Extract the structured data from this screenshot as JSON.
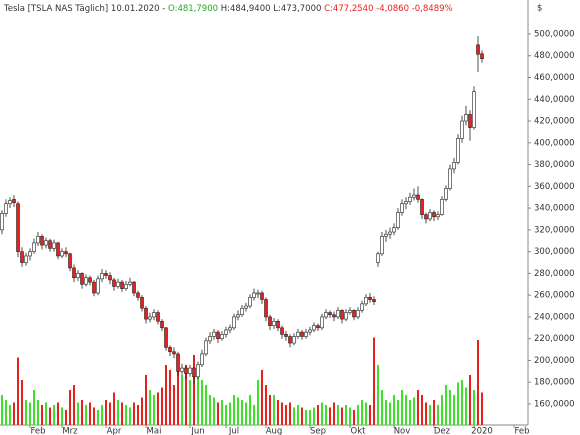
{
  "chart_data": {
    "type": "candlestick",
    "title": "Tesla [TSLA NAS  Täglich] 10.01.2020 -",
    "ohlc_labels": [
      "O:481,7900",
      "H:484,9400",
      "L:473,7000",
      "C:477,2540"
    ],
    "change": "-4,0860",
    "change_pct": "-0,8489%",
    "y_axis_label": "$",
    "colors": {
      "up": "#ffffff",
      "down": "#e8211d",
      "outline": "#222222",
      "volume_up": "#3fe02a",
      "volume_down": "#e8211d",
      "open_label": "#22aa22",
      "close_label": "#e8211d"
    },
    "grid": false,
    "ylim": [
      140.7,
      531.2
    ],
    "yticks": [
      {
        "value": 160,
        "label": "160,0000"
      },
      {
        "value": 180,
        "label": "180,0000"
      },
      {
        "value": 200,
        "label": "200,0000"
      },
      {
        "value": 220,
        "label": "220,0000"
      },
      {
        "value": 240,
        "label": "240,0000"
      },
      {
        "value": 260,
        "label": "260,0000"
      },
      {
        "value": 280,
        "label": "280,0000"
      },
      {
        "value": 300,
        "label": "300,0000"
      },
      {
        "value": 320,
        "label": "320,0000"
      },
      {
        "value": 340,
        "label": "340,0000"
      },
      {
        "value": 360,
        "label": "360,0000"
      },
      {
        "value": 380,
        "label": "380,0000"
      },
      {
        "value": 400,
        "label": "400,0000"
      },
      {
        "value": 420,
        "label": "420,0000"
      },
      {
        "value": 440,
        "label": "440,0000"
      },
      {
        "value": 460,
        "label": "460,0000"
      },
      {
        "value": 480,
        "label": "480,0000"
      },
      {
        "value": 500,
        "label": "500,0000"
      }
    ],
    "volume_ylim": [
      0,
      40
    ],
    "categories": [
      null,
      null,
      null,
      null,
      null,
      null,
      null,
      null,
      null,
      "Feb",
      null,
      null,
      null,
      null,
      null,
      null,
      null,
      "Mrz",
      null,
      null,
      null,
      null,
      null,
      null,
      null,
      null,
      null,
      null,
      "Apr",
      null,
      null,
      null,
      null,
      null,
      null,
      null,
      null,
      null,
      "Mai",
      null,
      null,
      null,
      null,
      null,
      null,
      null,
      null,
      null,
      null,
      "Jun",
      null,
      null,
      null,
      null,
      null,
      null,
      null,
      null,
      "Jul",
      null,
      null,
      null,
      null,
      null,
      null,
      null,
      null,
      null,
      "Aug",
      null,
      null,
      null,
      null,
      null,
      null,
      null,
      null,
      null,
      null,
      "Sep",
      null,
      null,
      null,
      null,
      null,
      null,
      null,
      null,
      null,
      "Okt",
      null,
      null,
      null,
      null,
      null,
      null,
      null,
      null,
      null,
      null,
      "Nov",
      null,
      null,
      null,
      null,
      null,
      null,
      null,
      null,
      null,
      "Dez",
      null,
      null,
      null,
      null,
      null,
      null,
      null,
      null,
      null,
      "2020",
      null,
      null,
      null,
      null,
      null,
      null,
      null,
      null,
      null,
      "Feb",
      null
    ],
    "open": [
      320,
      335,
      344,
      348,
      344,
      300,
      290,
      296,
      300,
      308,
      314,
      306,
      310,
      303,
      308,
      296,
      300,
      298,
      285,
      276,
      280,
      270,
      276,
      272,
      262,
      275,
      280,
      278,
      274,
      268,
      272,
      266,
      270,
      272,
      262,
      258,
      248,
      238,
      240,
      244,
      236,
      230,
      212,
      208,
      206,
      190,
      193,
      188,
      193,
      185,
      196,
      206,
      218,
      222,
      226,
      220,
      224,
      228,
      230,
      240,
      242,
      248,
      250,
      258,
      262,
      262,
      256,
      240,
      232,
      236,
      230,
      224,
      222,
      216,
      222,
      226,
      222,
      226,
      228,
      232,
      230,
      240,
      244,
      242,
      240,
      246,
      238,
      244,
      246,
      240,
      246,
      252,
      258,
      256,
      290,
      298,
      314,
      316,
      318,
      322,
      336,
      344,
      346,
      350,
      352,
      348,
      334,
      330,
      336,
      332,
      334,
      348,
      358,
      376,
      382,
      404,
      420,
      426,
      414,
      490,
      481.79,
      null,
      null,
      null,
      null,
      null,
      null,
      null,
      null,
      null,
      null,
      null
    ],
    "high": [
      338,
      348,
      350,
      352,
      346,
      304,
      299,
      303,
      312,
      318,
      316,
      313,
      312,
      311,
      309,
      303,
      304,
      299,
      288,
      283,
      281,
      279,
      278,
      274,
      278,
      284,
      283,
      281,
      276,
      275,
      274,
      273,
      276,
      273,
      264,
      260,
      250,
      244,
      247,
      246,
      238,
      231,
      214,
      212,
      208,
      197,
      195,
      196,
      194,
      199,
      210,
      221,
      226,
      229,
      228,
      227,
      231,
      233,
      243,
      246,
      251,
      253,
      261,
      266,
      265,
      264,
      258,
      242,
      239,
      238,
      232,
      227,
      224,
      225,
      229,
      228,
      229,
      231,
      235,
      234,
      243,
      247,
      246,
      245,
      249,
      247,
      247,
      249,
      247,
      249,
      255,
      261,
      262,
      259,
      300,
      318,
      320,
      322,
      326,
      340,
      348,
      350,
      354,
      358,
      360,
      349,
      336,
      339,
      338,
      337,
      351,
      361,
      380,
      386,
      408,
      425,
      434,
      430,
      452,
      498,
      484.94,
      null,
      null,
      null,
      null,
      null,
      null,
      null,
      null,
      null,
      null,
      null
    ],
    "low": [
      316,
      332,
      340,
      341,
      295,
      286,
      287,
      292,
      298,
      305,
      302,
      303,
      300,
      300,
      293,
      294,
      295,
      282,
      272,
      273,
      266,
      268,
      269,
      259,
      260,
      272,
      275,
      270,
      264,
      266,
      263,
      264,
      268,
      259,
      255,
      245,
      234,
      235,
      237,
      233,
      227,
      209,
      204,
      202,
      186,
      187,
      183,
      185,
      178,
      183,
      194,
      204,
      215,
      219,
      216,
      218,
      221,
      225,
      228,
      237,
      240,
      245,
      248,
      255,
      257,
      252,
      236,
      228,
      229,
      227,
      220,
      218,
      212,
      214,
      220,
      219,
      220,
      223,
      226,
      227,
      228,
      238,
      239,
      236,
      238,
      234,
      236,
      242,
      237,
      238,
      244,
      250,
      253,
      251,
      286,
      296,
      309,
      312,
      315,
      320,
      333,
      339,
      343,
      347,
      345,
      330,
      326,
      328,
      328,
      329,
      333,
      346,
      356,
      372,
      380,
      400,
      416,
      402,
      412,
      465,
      473.7,
      null,
      null,
      null,
      null,
      null,
      null,
      null,
      null,
      null,
      null,
      null
    ],
    "close": [
      335,
      344,
      347,
      345,
      300,
      290,
      296,
      300,
      308,
      314,
      306,
      310,
      303,
      308,
      296,
      300,
      298,
      285,
      276,
      280,
      270,
      276,
      272,
      262,
      275,
      280,
      278,
      274,
      268,
      272,
      266,
      270,
      272,
      262,
      258,
      248,
      238,
      240,
      244,
      236,
      230,
      212,
      208,
      206,
      190,
      193,
      188,
      193,
      185,
      196,
      206,
      218,
      222,
      226,
      220,
      224,
      228,
      230,
      240,
      242,
      248,
      250,
      258,
      262,
      262,
      256,
      240,
      232,
      236,
      230,
      224,
      222,
      216,
      222,
      226,
      222,
      226,
      228,
      232,
      230,
      240,
      244,
      242,
      240,
      246,
      238,
      244,
      246,
      240,
      246,
      252,
      258,
      256,
      254,
      298,
      314,
      316,
      318,
      322,
      336,
      344,
      346,
      350,
      352,
      348,
      334,
      330,
      336,
      332,
      334,
      348,
      358,
      376,
      382,
      404,
      420,
      426,
      414,
      447,
      481.34,
      477.254,
      null,
      null,
      null,
      null,
      null,
      null,
      null,
      null,
      null,
      null,
      null
    ],
    "volume": [
      12,
      10,
      8,
      9,
      27,
      18,
      10,
      9,
      14,
      10,
      8,
      9,
      7,
      8,
      9,
      7,
      6,
      14,
      16,
      9,
      10,
      8,
      9,
      7,
      6,
      8,
      10,
      9,
      13,
      10,
      9,
      8,
      7,
      9,
      8,
      11,
      20,
      14,
      12,
      13,
      15,
      24,
      22,
      16,
      26,
      20,
      24,
      18,
      28,
      20,
      18,
      16,
      12,
      11,
      9,
      10,
      8,
      9,
      12,
      11,
      10,
      9,
      12,
      8,
      18,
      22,
      16,
      12,
      12,
      10,
      9,
      8,
      9,
      7,
      8,
      7,
      6,
      6,
      7,
      8,
      9,
      8,
      7,
      9,
      8,
      7,
      8,
      7,
      6,
      8,
      10,
      9,
      8,
      35,
      24,
      14,
      10,
      9,
      12,
      10,
      14,
      12,
      10,
      11,
      14,
      12,
      9,
      8,
      10,
      8,
      12,
      16,
      14,
      12,
      17,
      18,
      15,
      20,
      14,
      34,
      13,
      null,
      null,
      null,
      null,
      null,
      null,
      null,
      null,
      null,
      null,
      null
    ]
  }
}
